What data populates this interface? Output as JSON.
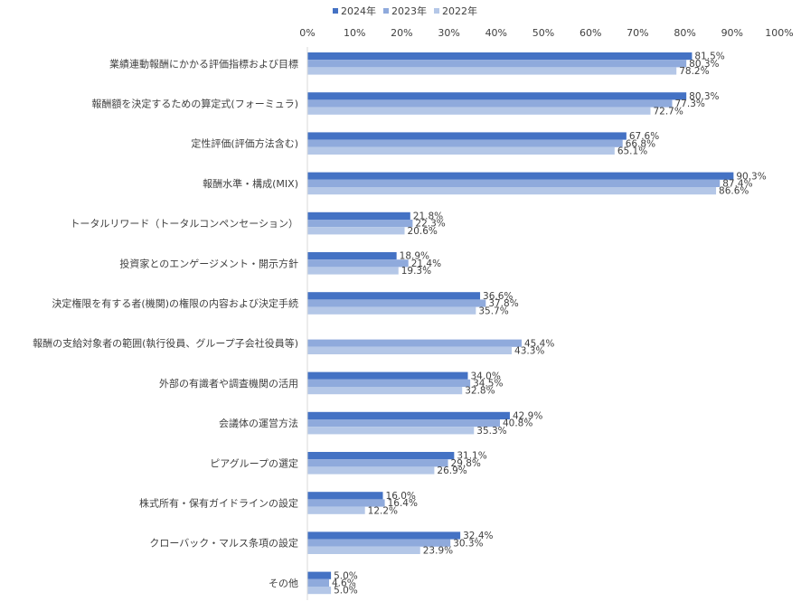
{
  "chart_data": {
    "type": "bar",
    "orientation": "horizontal",
    "title": "",
    "xlabel": "",
    "ylabel": "",
    "xlim": [
      0,
      100
    ],
    "x_ticks": [
      "0%",
      "10%",
      "20%",
      "30%",
      "40%",
      "50%",
      "60%",
      "70%",
      "80%",
      "90%",
      "100%"
    ],
    "x_ticks_values": [
      0,
      10,
      20,
      30,
      40,
      50,
      60,
      70,
      80,
      90,
      100
    ],
    "grid": false,
    "legend_position": "top",
    "categories": [
      "業績連動報酬にかかる評価指標および目標",
      "報酬額を決定するための算定式(フォーミュラ)",
      "定性評価(評価方法含む)",
      "報酬水準・構成(MIX)",
      "トータルリワード（トータルコンペンセーション）",
      "投資家とのエンゲージメント・開示方針",
      "決定権限を有する者(機関)の権限の内容および決定手続",
      "報酬の支給対象者の範囲(執行役員、グループ子会社役員等)",
      "外部の有識者や調査機関の活用",
      "会議体の運営方法",
      "ピアグループの選定",
      "株式所有・保有ガイドラインの設定",
      "クローバック・マルス条項の設定",
      "その他"
    ],
    "series": [
      {
        "name": "2024年",
        "color": "#4472c4",
        "values": [
          81.5,
          80.3,
          67.6,
          90.3,
          21.8,
          18.9,
          36.6,
          null,
          34.0,
          42.9,
          31.1,
          16.0,
          32.4,
          5.0
        ],
        "labels": [
          "81.5%",
          "80.3%",
          "67.6%",
          "90.3%",
          "21.8%",
          "18.9%",
          "36.6%",
          null,
          "34.0%",
          "42.9%",
          "31.1%",
          "16.0%",
          "32.4%",
          "5.0%"
        ]
      },
      {
        "name": "2023年",
        "color": "#8faadc",
        "values": [
          80.3,
          77.3,
          66.8,
          87.4,
          22.3,
          21.4,
          37.8,
          45.4,
          34.5,
          40.8,
          29.8,
          16.4,
          30.3,
          4.6
        ],
        "labels": [
          "80.3%",
          "77.3%",
          "66.8%",
          "87.4%",
          "22.3%",
          "21.4%",
          "37.8%",
          "45.4%",
          "34.5%",
          "40.8%",
          "29.8%",
          "16.4%",
          "30.3%",
          "4.6%"
        ]
      },
      {
        "name": "2022年",
        "color": "#b4c7e7",
        "values": [
          78.2,
          72.7,
          65.1,
          86.6,
          20.6,
          19.3,
          35.7,
          43.3,
          32.8,
          35.3,
          26.9,
          12.2,
          23.9,
          5.0
        ],
        "labels": [
          "78.2%",
          "72.7%",
          "65.1%",
          "86.6%",
          "20.6%",
          "19.3%",
          "35.7%",
          "43.3%",
          "32.8%",
          "35.3%",
          "26.9%",
          "12.2%",
          "23.9%",
          "5.0%"
        ]
      }
    ]
  }
}
